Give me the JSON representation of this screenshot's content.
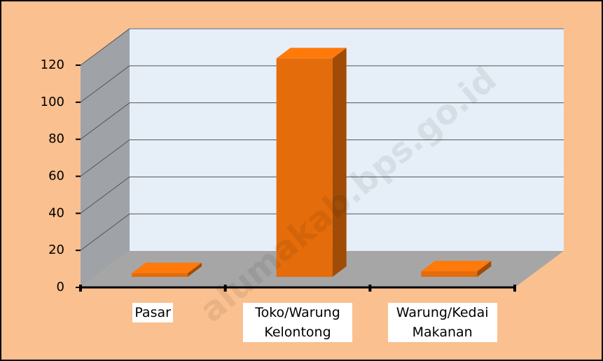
{
  "chart_data": {
    "type": "bar",
    "categories": [
      "Pasar",
      "Toko/Warung Kelontong",
      "Warung/Kedai Makanan"
    ],
    "values": [
      2,
      118,
      3
    ],
    "color": "#E46C0A",
    "ylim": [
      0,
      120
    ],
    "yticks": [
      0,
      20,
      40,
      60,
      80,
      100,
      120
    ],
    "grid": true,
    "watermark": "alumakab.bps.go.id"
  }
}
